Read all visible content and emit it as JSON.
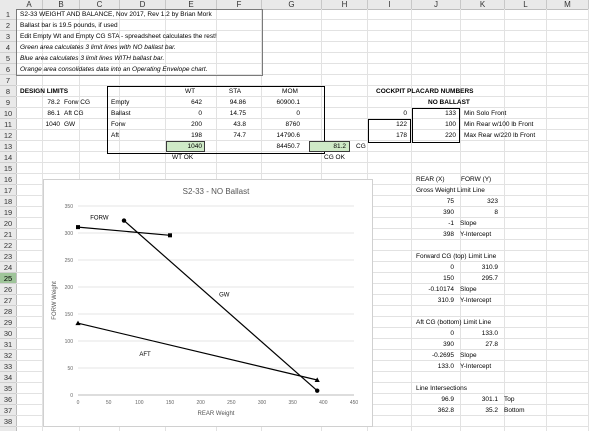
{
  "columns": [
    "A",
    "B",
    "C",
    "D",
    "E",
    "F",
    "G",
    "H",
    "I",
    "J",
    "K",
    "L",
    "M"
  ],
  "rows": [
    "1",
    "2",
    "3",
    "4",
    "5",
    "6",
    "7",
    "8",
    "9",
    "10",
    "11",
    "12",
    "13",
    "14",
    "15",
    "16",
    "17",
    "18",
    "19",
    "20",
    "21",
    "22",
    "23",
    "24",
    "25",
    "26",
    "27",
    "28",
    "29",
    "30",
    "31",
    "32",
    "33",
    "34",
    "35",
    "36",
    "37",
    "38"
  ],
  "selected_row": "25",
  "notes": {
    "r1": "S2-33 WEIGHT AND BALANCE, Nov 2017, Rev 1.2 by Brian Mork",
    "r2": "Ballast bar is 19.5 pounds, if used",
    "r3": "Edit Empty Wt and Empty CG STA - spreadsheet calculates the rest!",
    "r4": "Green area calculates 3 limit lines with NO ballast bar.",
    "r5": "Blue area calculates 3 limit lines WITH ballast bar.",
    "r6": "Orange area consolidates data into an Operating Envelope chart."
  },
  "design_limits": {
    "title": "DESIGN LIMITS",
    "rows": [
      {
        "val": "78.2",
        "label": "Forw CG"
      },
      {
        "val": "86.1",
        "label": "Aft CG"
      },
      {
        "val": "1040",
        "label": "GW"
      }
    ]
  },
  "wb_table": {
    "headers": {
      "wt": "WT",
      "sta": "STA",
      "mom": "MOM"
    },
    "rows": [
      {
        "label": "Empty",
        "wt": "642",
        "sta": "94.86",
        "mom": "60900.1"
      },
      {
        "label": "Ballast",
        "wt": "0",
        "sta": "14.75",
        "mom": "0"
      },
      {
        "label": "Forw",
        "wt": "200",
        "sta": "43.8",
        "mom": "8760"
      },
      {
        "label": "Aft",
        "wt": "198",
        "sta": "74.7",
        "mom": "14790.6"
      }
    ],
    "total_wt": "1040",
    "total_mom": "84450.7",
    "cg": "81.2",
    "cg_label": "CG",
    "wt_ok": "WT OK",
    "cg_ok": "CG OK"
  },
  "placard": {
    "title": "COCKPIT PLACARD NUMBERS",
    "subtitle": "NO BALLAST",
    "rows": [
      {
        "col_i": "0",
        "col_j": "133",
        "text": "Min Solo Front"
      },
      {
        "col_i": "122",
        "col_j": "100",
        "text": "Min Rear w/100 lb Front"
      },
      {
        "col_i": "178",
        "col_j": "220",
        "text": "Max Rear w/220 lb Front"
      }
    ]
  },
  "right_panel": {
    "gw_head": {
      "a": "REAR (X)",
      "b": "FORW (Y)"
    },
    "gw_title": "Gross Weight Limit Line",
    "gw_pts": [
      {
        "x": "75",
        "y": "323"
      },
      {
        "x": "390",
        "y": "8"
      }
    ],
    "gw_slope": {
      "v": "-1",
      "t": "Slope"
    },
    "gw_int": {
      "v": "398",
      "t": "Y-Intercept"
    },
    "fwd_title": "Forward CG (top) Limit Line",
    "fwd_pts": [
      {
        "x": "0",
        "y": "310.9"
      },
      {
        "x": "150",
        "y": "295.7"
      }
    ],
    "fwd_slope": {
      "v": "-0.10174",
      "t": "Slope"
    },
    "fwd_int": {
      "v": "310.9",
      "t": "Y-Intercept"
    },
    "aft_title": "Aft CG (bottom) Limit Line",
    "aft_pts": [
      {
        "x": "0",
        "y": "133.0"
      },
      {
        "x": "390",
        "y": "27.8"
      }
    ],
    "aft_slope": {
      "v": "-0.2695",
      "t": "Slope"
    },
    "aft_int": {
      "v": "133.0",
      "t": "Y-Intercept"
    },
    "int_title": "Line Intersections",
    "int_rows": [
      {
        "a": "96.9",
        "b": "301.1",
        "t": "Top"
      },
      {
        "a": "362.8",
        "b": "35.2",
        "t": "Bottom"
      }
    ]
  },
  "chart_data": {
    "type": "scatter",
    "title": "S2-33 - NO Ballast",
    "xlabel": "REAR Weight",
    "ylabel": "FORW Weight",
    "xlim": [
      0,
      450
    ],
    "ylim": [
      0,
      350
    ],
    "xticks": [
      0,
      50,
      100,
      150,
      200,
      250,
      300,
      350,
      400,
      450
    ],
    "yticks": [
      0,
      50,
      100,
      150,
      200,
      250,
      300,
      350
    ],
    "series": [
      {
        "name": "FORW",
        "marker": "square",
        "x": [
          0,
          150
        ],
        "y": [
          310.9,
          295.7
        ]
      },
      {
        "name": "GW",
        "marker": "diamond",
        "x": [
          75,
          390
        ],
        "y": [
          323,
          8
        ]
      },
      {
        "name": "AFT",
        "marker": "triangle",
        "x": [
          0,
          390
        ],
        "y": [
          133.0,
          27.8
        ]
      }
    ],
    "line_labels": [
      {
        "text": "FORW",
        "x": 20,
        "y": 325
      },
      {
        "text": "GW",
        "x": 230,
        "y": 182
      },
      {
        "text": "AFT",
        "x": 100,
        "y": 72
      }
    ]
  }
}
